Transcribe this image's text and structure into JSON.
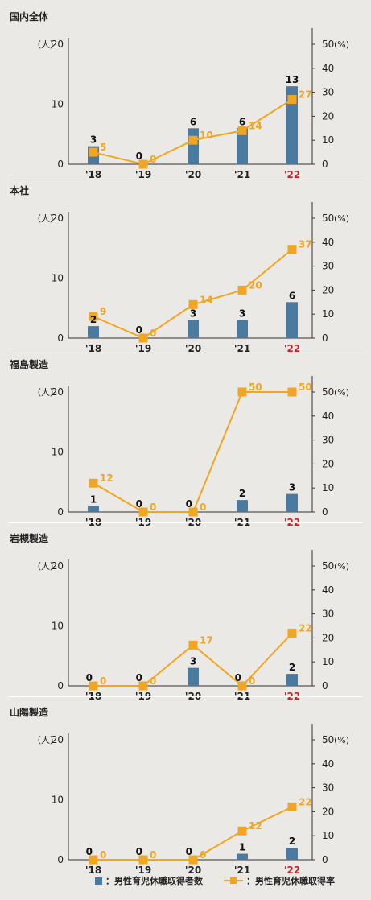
{
  "legend": {
    "bar_label": "：男性育児休職取得者数",
    "line_label": "：男性育児休職取得率"
  },
  "colors": {
    "bar": "#4a7aa0",
    "line": "#f0a620",
    "axis": "#333333",
    "highlight_year": "#c0272d",
    "background": "#ebe9e6"
  },
  "chart_data": [
    {
      "type": "bar",
      "title": "国内全体",
      "categories": [
        "'18",
        "'19",
        "'20",
        "'21",
        "'22"
      ],
      "highlight_category": "'22",
      "left_axis": {
        "unit_label": "（人）",
        "ylim": [
          0,
          20
        ],
        "ticks": [
          "0",
          "10",
          "20"
        ]
      },
      "right_axis": {
        "unit_label": "(%)",
        "ylim": [
          0,
          50
        ],
        "ticks": [
          "0",
          "10",
          "20",
          "30",
          "40",
          "50"
        ]
      },
      "series": [
        {
          "kind": "bar",
          "values": [
            3,
            0,
            6,
            6,
            13
          ],
          "labels": [
            "3",
            "0",
            "6",
            "6",
            "13"
          ]
        },
        {
          "kind": "line",
          "values": [
            5,
            0,
            10,
            14,
            27
          ],
          "labels": [
            "5",
            "0",
            "10",
            "14",
            "27"
          ]
        }
      ]
    },
    {
      "type": "bar",
      "title": "本社",
      "categories": [
        "'18",
        "'19",
        "'20",
        "'21",
        "'22"
      ],
      "highlight_category": "'22",
      "left_axis": {
        "unit_label": "（人）",
        "ylim": [
          0,
          20
        ],
        "ticks": [
          "0",
          "10",
          "20"
        ]
      },
      "right_axis": {
        "unit_label": "(%)",
        "ylim": [
          0,
          50
        ],
        "ticks": [
          "0",
          "10",
          "20",
          "30",
          "40",
          "50"
        ]
      },
      "series": [
        {
          "kind": "bar",
          "values": [
            2,
            0,
            3,
            3,
            6
          ],
          "labels": [
            "2",
            "0",
            "3",
            "3",
            "6"
          ]
        },
        {
          "kind": "line",
          "values": [
            9,
            0,
            14,
            20,
            37
          ],
          "labels": [
            "9",
            "0",
            "14",
            "20",
            "37"
          ]
        }
      ]
    },
    {
      "type": "bar",
      "title": "福島製造",
      "categories": [
        "'18",
        "'19",
        "'20",
        "'21",
        "'22"
      ],
      "highlight_category": "'22",
      "left_axis": {
        "unit_label": "（人）",
        "ylim": [
          0,
          20
        ],
        "ticks": [
          "0",
          "10",
          "20"
        ]
      },
      "right_axis": {
        "unit_label": "(%)",
        "ylim": [
          0,
          50
        ],
        "ticks": [
          "0",
          "10",
          "20",
          "30",
          "40",
          "50"
        ]
      },
      "series": [
        {
          "kind": "bar",
          "values": [
            1,
            0,
            0,
            2,
            3
          ],
          "labels": [
            "1",
            "0",
            "0",
            "2",
            "3"
          ]
        },
        {
          "kind": "line",
          "values": [
            12,
            0,
            0,
            50,
            50
          ],
          "labels": [
            "12",
            "0",
            "0",
            "50",
            "50"
          ]
        }
      ]
    },
    {
      "type": "bar",
      "title": "岩槻製造",
      "categories": [
        "'18",
        "'19",
        "'20",
        "'21",
        "'22"
      ],
      "highlight_category": "'22",
      "left_axis": {
        "unit_label": "（人）",
        "ylim": [
          0,
          20
        ],
        "ticks": [
          "0",
          "10",
          "20"
        ]
      },
      "right_axis": {
        "unit_label": "(%)",
        "ylim": [
          0,
          50
        ],
        "ticks": [
          "0",
          "10",
          "20",
          "30",
          "40",
          "50"
        ]
      },
      "series": [
        {
          "kind": "bar",
          "values": [
            0,
            0,
            3,
            0,
            2
          ],
          "labels": [
            "0",
            "0",
            "3",
            "0",
            "2"
          ]
        },
        {
          "kind": "line",
          "values": [
            0,
            0,
            17,
            0,
            22
          ],
          "labels": [
            "0",
            "0",
            "17",
            "0",
            "22"
          ]
        }
      ]
    },
    {
      "type": "bar",
      "title": "山陽製造",
      "categories": [
        "'18",
        "'19",
        "'20",
        "'21",
        "'22"
      ],
      "highlight_category": "'22",
      "left_axis": {
        "unit_label": "（人）",
        "ylim": [
          0,
          20
        ],
        "ticks": [
          "0",
          "10",
          "20"
        ]
      },
      "right_axis": {
        "unit_label": "(%)",
        "ylim": [
          0,
          50
        ],
        "ticks": [
          "0",
          "10",
          "20",
          "30",
          "40",
          "50"
        ]
      },
      "series": [
        {
          "kind": "bar",
          "values": [
            0,
            0,
            0,
            1,
            2
          ],
          "labels": [
            "0",
            "0",
            "0",
            "1",
            "2"
          ]
        },
        {
          "kind": "line",
          "values": [
            0,
            0,
            0,
            12,
            22
          ],
          "labels": [
            "0",
            "0",
            "0",
            "12",
            "22"
          ]
        }
      ]
    }
  ]
}
